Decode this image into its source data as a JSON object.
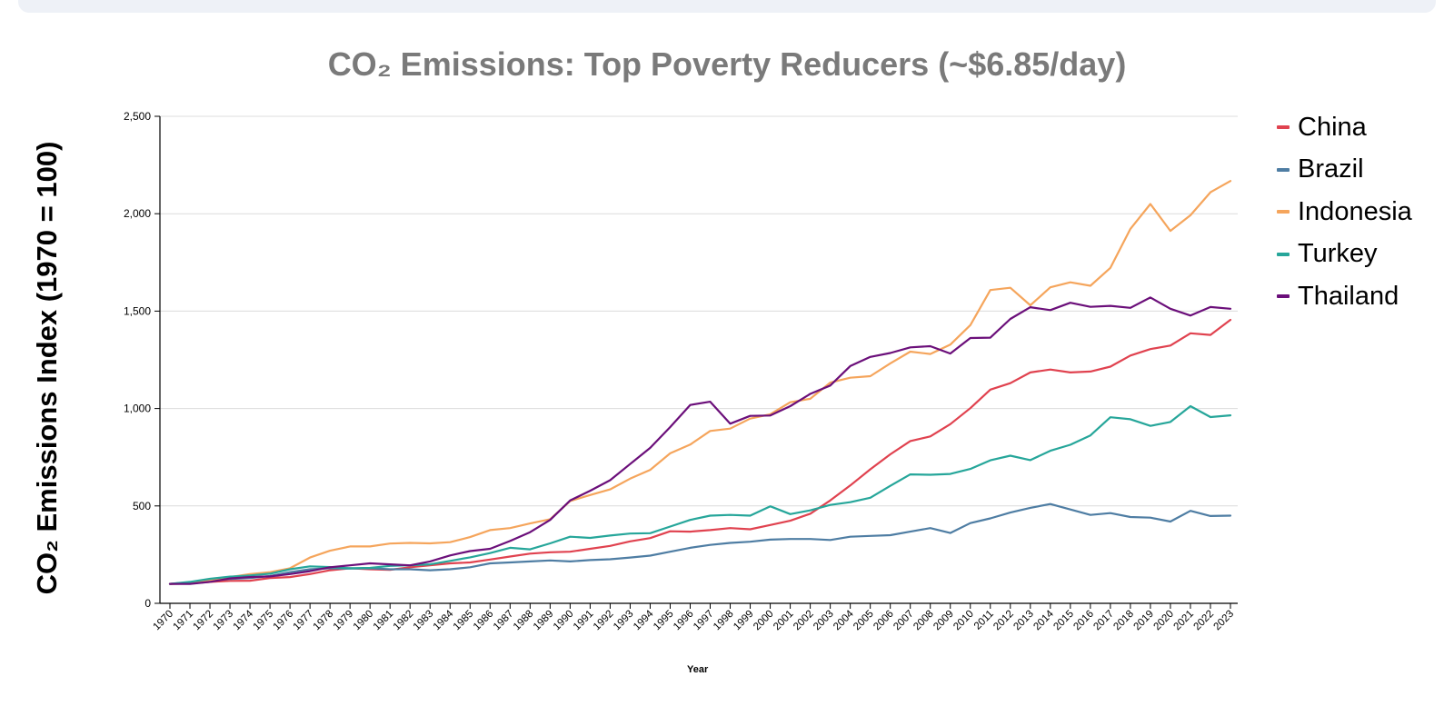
{
  "chart_data": {
    "type": "line",
    "title": "CO₂ Emissions: Top Poverty Reducers (~$6.85/day)",
    "xlabel": "Year",
    "ylabel": "CO₂ Emissions Index (1970 = 100)",
    "ylim": [
      0,
      2500
    ],
    "yticks": [
      0,
      500,
      1000,
      1500,
      2000,
      2500
    ],
    "ytick_labels": [
      "0",
      "500",
      "1,000",
      "1,500",
      "2,000",
      "2,500"
    ],
    "grid": "horizontal",
    "legend_position": "right",
    "x": [
      1970,
      1971,
      1972,
      1973,
      1974,
      1975,
      1976,
      1977,
      1978,
      1979,
      1980,
      1981,
      1982,
      1983,
      1984,
      1985,
      1986,
      1987,
      1988,
      1989,
      1990,
      1991,
      1992,
      1993,
      1994,
      1995,
      1996,
      1997,
      1998,
      1999,
      2000,
      2001,
      2002,
      2003,
      2004,
      2005,
      2006,
      2007,
      2008,
      2009,
      2010,
      2011,
      2012,
      2013,
      2014,
      2015,
      2016,
      2017,
      2018,
      2019,
      2020,
      2021,
      2022,
      2023
    ],
    "series": [
      {
        "name": "China",
        "color": "#e0424f",
        "values": [
          100,
          102,
          110,
          115,
          116,
          130,
          135,
          150,
          170,
          180,
          175,
          172,
          185,
          195,
          205,
          210,
          225,
          240,
          255,
          262,
          265,
          280,
          295,
          318,
          335,
          370,
          368,
          376,
          386,
          380,
          402,
          424,
          460,
          528,
          605,
          688,
          765,
          833,
          857,
          920,
          1002,
          1097,
          1130,
          1185,
          1200,
          1185,
          1190,
          1215,
          1272,
          1305,
          1323,
          1386,
          1378,
          1455
        ]
      },
      {
        "name": "Brazil",
        "color": "#4e7da3",
        "values": [
          100,
          108,
          118,
          125,
          130,
          140,
          160,
          175,
          180,
          178,
          180,
          175,
          175,
          170,
          175,
          185,
          205,
          210,
          215,
          220,
          215,
          222,
          226,
          235,
          245,
          265,
          285,
          300,
          310,
          316,
          327,
          330,
          330,
          325,
          342,
          346,
          350,
          368,
          386,
          361,
          412,
          436,
          466,
          490,
          510,
          482,
          454,
          463,
          443,
          440,
          420,
          475,
          448,
          450
        ]
      },
      {
        "name": "Indonesia",
        "color": "#f5a55c",
        "values": [
          100,
          105,
          120,
          135,
          150,
          160,
          180,
          235,
          270,
          292,
          292,
          307,
          310,
          308,
          314,
          340,
          376,
          386,
          410,
          432,
          525,
          556,
          585,
          640,
          685,
          770,
          815,
          885,
          897,
          948,
          970,
          1032,
          1050,
          1133,
          1158,
          1166,
          1232,
          1292,
          1280,
          1328,
          1428,
          1608,
          1620,
          1530,
          1622,
          1648,
          1630,
          1722,
          1922,
          2050,
          1912,
          1992,
          2110,
          2168
        ]
      },
      {
        "name": "Turkey",
        "color": "#26a69a",
        "values": [
          100,
          110,
          126,
          137,
          143,
          152,
          175,
          190,
          186,
          180,
          182,
          192,
          195,
          200,
          218,
          236,
          258,
          285,
          277,
          308,
          342,
          336,
          348,
          358,
          360,
          394,
          428,
          450,
          454,
          450,
          498,
          458,
          477,
          505,
          519,
          542,
          603,
          662,
          660,
          664,
          690,
          734,
          758,
          735,
          783,
          814,
          862,
          955,
          945,
          911,
          931,
          1012,
          956,
          965
        ]
      },
      {
        "name": "Thailand",
        "color": "#6b0f7a",
        "values": [
          100,
          100,
          110,
          128,
          135,
          138,
          150,
          165,
          185,
          195,
          205,
          200,
          195,
          215,
          246,
          268,
          280,
          320,
          365,
          428,
          528,
          578,
          632,
          715,
          798,
          905,
          1018,
          1035,
          922,
          962,
          964,
          1012,
          1075,
          1118,
          1218,
          1265,
          1285,
          1314,
          1320,
          1282,
          1362,
          1364,
          1460,
          1520,
          1505,
          1543,
          1522,
          1527,
          1517,
          1570,
          1512,
          1477,
          1521,
          1512
        ]
      }
    ]
  }
}
